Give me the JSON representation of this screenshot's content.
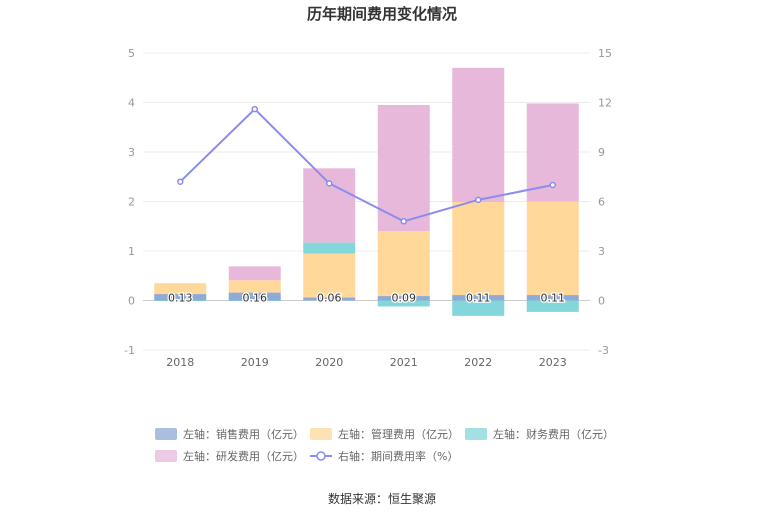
{
  "title": "历年期间费用变化情况",
  "source": "数据来源：恒生聚源",
  "colors": {
    "sales": "#8eaad6",
    "admin": "#ffd89a",
    "finance": "#83d6da",
    "rnd": "#e7b8d9",
    "rate": "#8a8cf0"
  },
  "chart_data": {
    "type": "bar",
    "categories": [
      "2018",
      "2019",
      "2020",
      "2021",
      "2022",
      "2023"
    ],
    "series": [
      {
        "name": "左轴：销售费用（亿元）",
        "axis": "left",
        "values": [
          0.13,
          0.16,
          0.06,
          0.09,
          0.11,
          0.11
        ]
      },
      {
        "name": "左轴：管理费用（亿元）",
        "axis": "left",
        "values": [
          0.22,
          0.25,
          0.89,
          1.31,
          1.88,
          1.89
        ]
      },
      {
        "name": "左轴：财务费用（亿元）",
        "axis": "left",
        "values": [
          -0.01,
          -0.01,
          0.22,
          -0.12,
          -0.31,
          -0.23
        ]
      },
      {
        "name": "左轴：研发费用（亿元）",
        "axis": "left",
        "values": [
          0.0,
          0.28,
          1.5,
          2.55,
          2.71,
          1.98
        ]
      },
      {
        "name": "右轴：期间费用率（%）",
        "axis": "right",
        "type": "line",
        "values": [
          7.2,
          11.6,
          7.1,
          4.8,
          6.1,
          7.0
        ]
      }
    ],
    "data_labels": [
      "0.13",
      "0.16",
      "0.06",
      "0.09",
      "0.11",
      "0.11"
    ],
    "left_axis": {
      "range": [
        -1,
        5
      ],
      "ticks": [
        "-1",
        "0",
        "1",
        "2",
        "3",
        "4",
        "5"
      ]
    },
    "right_axis": {
      "range": [
        -3,
        15
      ],
      "ticks": [
        "-3",
        "0",
        "3",
        "6",
        "9",
        "12",
        "15"
      ]
    },
    "grid": true,
    "legend_position": "bottom"
  }
}
